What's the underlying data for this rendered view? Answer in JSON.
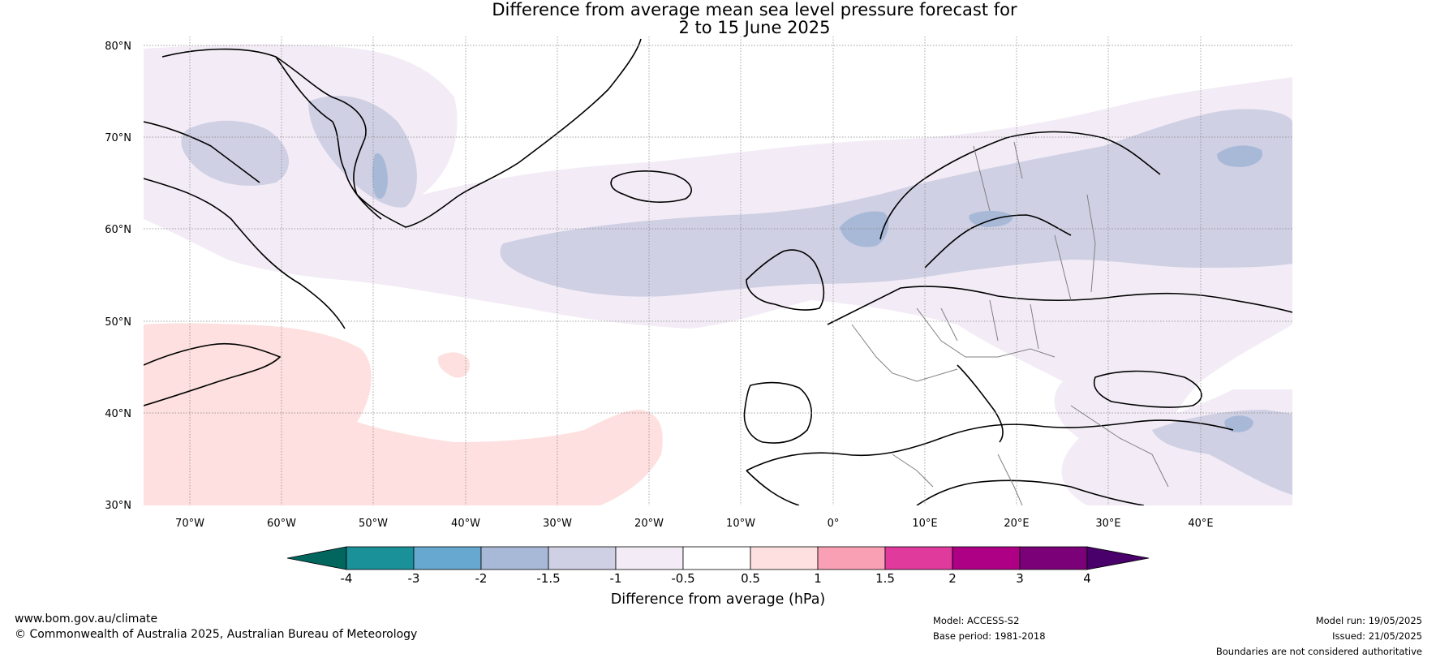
{
  "title": {
    "line1": "Difference from average mean sea level pressure forecast for",
    "line2": "2 to 15 June 2025"
  },
  "map": {
    "lat_ticks": [
      "80°N",
      "70°N",
      "60°N",
      "50°N",
      "40°N",
      "30°N"
    ],
    "lon_ticks": [
      "70°W",
      "60°W",
      "50°W",
      "40°W",
      "30°W",
      "20°W",
      "10°W",
      "0°",
      "10°E",
      "20°E",
      "30°E",
      "40°E"
    ],
    "extent": {
      "lon": [
        -75,
        50
      ],
      "lat": [
        30,
        81
      ]
    }
  },
  "colorbar": {
    "label": "Difference from average (hPa)",
    "ticks": [
      "-4",
      "-3",
      "-2",
      "-1.5",
      "-1",
      "-0.5",
      "0.5",
      "1",
      "1.5",
      "2",
      "3",
      "4"
    ],
    "colors": {
      "lt_-4": "#00665e",
      "-4_-3": "#1a9099",
      "-3_-2": "#66a8d0",
      "-2_-1.5": "#a8b9d8",
      "-1.5_-1": "#d0d0e4",
      "-1_-0.5": "#f3ecf6",
      "-0.5_0.5": "#ffffff",
      "0.5_1": "#fde0df",
      "1_1.5": "#f9a0b4",
      "1.5_2": "#df3a9c",
      "2_3": "#ad0084",
      "3_4": "#7a0178",
      "gt_4": "#4a006a"
    }
  },
  "footer": {
    "website": "www.bom.gov.au/climate",
    "copyright": "© Commonwealth of Australia 2025, Australian Bureau of Meteorology",
    "model": "Model: ACCESS-S2",
    "base_period": "Base period: 1981-2018",
    "model_run": "Model run: 19/05/2025",
    "issued": "Issued: 21/05/2025",
    "disclaimer": "Boundaries are not considered authoritative"
  }
}
